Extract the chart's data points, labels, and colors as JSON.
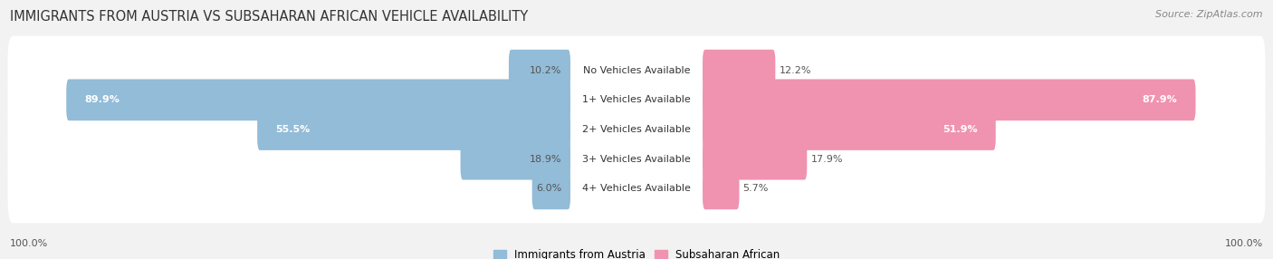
{
  "title": "IMMIGRANTS FROM AUSTRIA VS SUBSAHARAN AFRICAN VEHICLE AVAILABILITY",
  "source": "Source: ZipAtlas.com",
  "categories": [
    "No Vehicles Available",
    "1+ Vehicles Available",
    "2+ Vehicles Available",
    "3+ Vehicles Available",
    "4+ Vehicles Available"
  ],
  "austria_values": [
    10.2,
    89.9,
    55.5,
    18.9,
    6.0
  ],
  "subsaharan_values": [
    12.2,
    87.9,
    51.9,
    17.9,
    5.7
  ],
  "austria_color": "#92bcd8",
  "austria_color_dark": "#5a9abf",
  "subsaharan_color": "#f093b0",
  "subsaharan_color_dark": "#e05585",
  "austria_label": "Immigrants from Austria",
  "subsaharan_label": "Subsaharan African",
  "background_color": "#f2f2f2",
  "row_bg_color": "#ffffff",
  "title_fontsize": 10.5,
  "source_fontsize": 8,
  "cat_fontsize": 8,
  "value_fontsize": 8,
  "legend_fontsize": 8.5
}
